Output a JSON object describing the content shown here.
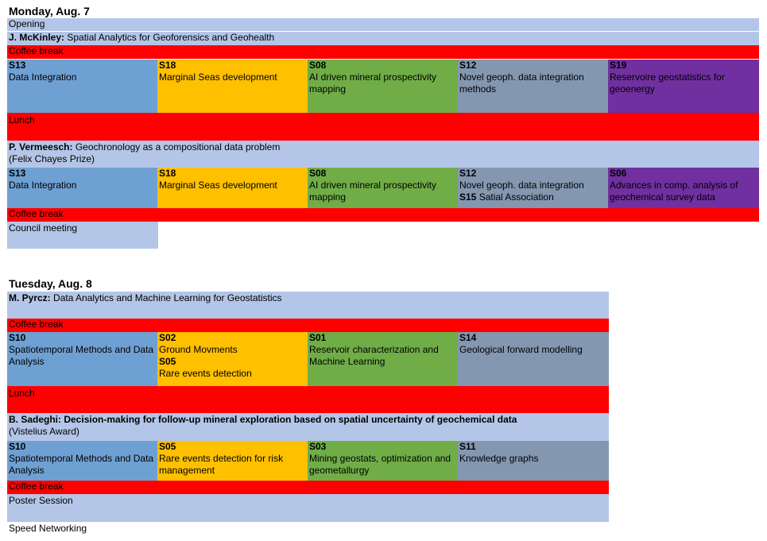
{
  "monday": {
    "title": "Monday, Aug. 7",
    "opening": "Opening",
    "keynote1_speaker": "J. McKinley:",
    "keynote1_title": " Spatial Analytics for Geoforensics and Geohealth",
    "coffee1": "Coffee break",
    "session_a": [
      {
        "code": "S13",
        "title": "Data Integration"
      },
      {
        "code": "S18",
        "title": "Marginal Seas development"
      },
      {
        "code": "S08",
        "title": "AI driven mineral prospectivity mapping"
      },
      {
        "code": "S12",
        "title": "Novel geoph. data integration methods"
      },
      {
        "code": "S19",
        "title": "Reservoire geostatistics for geoenergy"
      }
    ],
    "lunch": "Lunch",
    "keynote2_speaker": "P. Vermeesch:",
    "keynote2_title": " Geochronology as a compositional data problem",
    "keynote2_award": "(Felix Chayes Prize)",
    "session_b": [
      {
        "code": "S13",
        "title": "Data Integration"
      },
      {
        "code": "S18",
        "title": "Marginal Seas development"
      },
      {
        "code": "S08",
        "title": "AI driven mineral prospectivity mapping"
      },
      {
        "code": "S12",
        "title": "Novel geoph. data integration",
        "code2": "S15",
        "title2": " Satial Association"
      },
      {
        "code": "S06",
        "title": "Advances in comp. analysis of geochemical survey data"
      }
    ],
    "coffee2": "Coffee break",
    "council": "Council meeting"
  },
  "tuesday": {
    "title": "Tuesday, Aug. 8",
    "keynote1_speaker": "M. Pyrcz:",
    "keynote1_title": " Data Analytics and Machine Learning for Geostatistics",
    "coffee1": "Coffee break",
    "session_a": [
      {
        "code": "S10",
        "title": "Spatiotemporal Methods and Data Analysis"
      },
      {
        "code": "S02",
        "title": "Ground Movments",
        "code2": "S05",
        "title2": "Rare events detection"
      },
      {
        "code": "S01",
        "title": "Reservoir characterization and Machine Learning"
      },
      {
        "code": "S14",
        "title": "Geological forward modelling"
      }
    ],
    "lunch": "Lunch",
    "keynote2_text": "B. Sadeghi: Decision-making for follow-up mineral exploration based on spatial uncertainty of geochemical data",
    "keynote2_award": "(Vistelius Award)",
    "session_b": [
      {
        "code": "S10",
        "title": "Spatiotemporal Methods and Data Analysis"
      },
      {
        "code": "S05",
        "title": "Rare events detection for risk management"
      },
      {
        "code": "S03",
        "title": "Mining geostats, optimization and geometallurgy"
      },
      {
        "code": "S11",
        "title": "Knowledge graphs"
      }
    ],
    "coffee2": "Coffee break",
    "poster": "Poster Session",
    "networking": "Speed Networking"
  }
}
